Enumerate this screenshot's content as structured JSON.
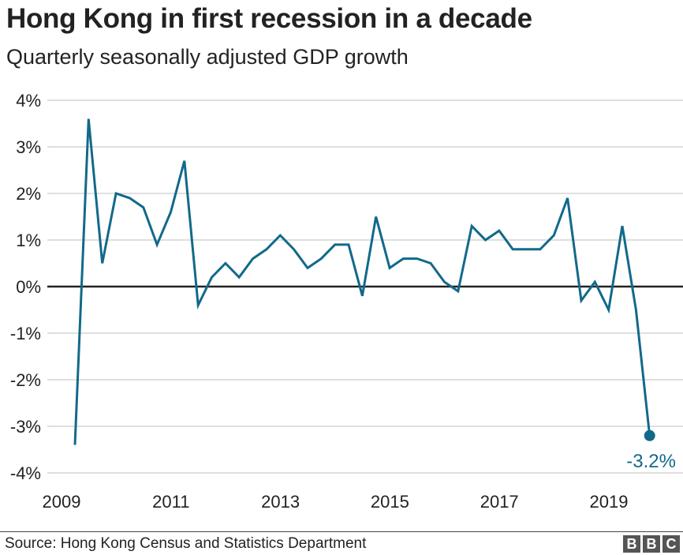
{
  "header": {
    "title": "Hong Kong in first recession in a decade",
    "subtitle": "Quarterly seasonally adjusted GDP growth"
  },
  "footer": {
    "source": "Source: Hong Kong Census and Statistics Department",
    "logo_letters": [
      "B",
      "B",
      "C"
    ]
  },
  "colors": {
    "line": "#12698a",
    "gridline": "#cccccc",
    "zero_line": "#222222",
    "text": "#222222",
    "logo_bg": "#555555"
  },
  "chart_data": {
    "type": "line",
    "title": "Hong Kong in first recession in a decade",
    "subtitle": "Quarterly seasonally adjusted GDP growth",
    "xlabel": "",
    "ylabel": "",
    "ylim": [
      -4,
      4
    ],
    "yticks": [
      4,
      3,
      2,
      1,
      0,
      -1,
      -2,
      -3,
      -4
    ],
    "ytick_labels": [
      "4%",
      "3%",
      "2%",
      "1%",
      "0%",
      "-1%",
      "-2%",
      "-3%",
      "-4%"
    ],
    "xtick_labels": [
      "2009",
      "2011",
      "2013",
      "2015",
      "2017",
      "2019"
    ],
    "grid": true,
    "legend": "none",
    "x": [
      "2009 Q1",
      "2009 Q2",
      "2009 Q3",
      "2009 Q4",
      "2010 Q1",
      "2010 Q2",
      "2010 Q3",
      "2010 Q4",
      "2011 Q1",
      "2011 Q2",
      "2011 Q3",
      "2011 Q4",
      "2012 Q1",
      "2012 Q2",
      "2012 Q3",
      "2012 Q4",
      "2013 Q1",
      "2013 Q2",
      "2013 Q3",
      "2013 Q4",
      "2014 Q1",
      "2014 Q2",
      "2014 Q3",
      "2014 Q4",
      "2015 Q1",
      "2015 Q2",
      "2015 Q3",
      "2015 Q4",
      "2016 Q1",
      "2016 Q2",
      "2016 Q3",
      "2016 Q4",
      "2017 Q1",
      "2017 Q2",
      "2017 Q3",
      "2017 Q4",
      "2018 Q1",
      "2018 Q2",
      "2018 Q3",
      "2018 Q4",
      "2019 Q1",
      "2019 Q2",
      "2019 Q3"
    ],
    "series": [
      {
        "name": "GDP growth (%)",
        "values": [
          -3.4,
          3.6,
          0.5,
          2.0,
          1.9,
          1.7,
          0.9,
          1.6,
          2.7,
          -0.4,
          0.2,
          0.5,
          0.2,
          0.6,
          0.8,
          1.1,
          0.8,
          0.4,
          0.6,
          0.9,
          0.9,
          -0.2,
          1.5,
          0.4,
          0.6,
          0.6,
          0.5,
          0.1,
          -0.1,
          1.3,
          1.0,
          1.2,
          0.8,
          0.8,
          0.8,
          1.1,
          1.9,
          -0.3,
          0.1,
          -0.5,
          1.3,
          -0.5,
          -3.2
        ]
      }
    ],
    "annotations": [
      {
        "x": "2019 Q3",
        "value": -3.2,
        "label": "-3.2%"
      }
    ]
  }
}
